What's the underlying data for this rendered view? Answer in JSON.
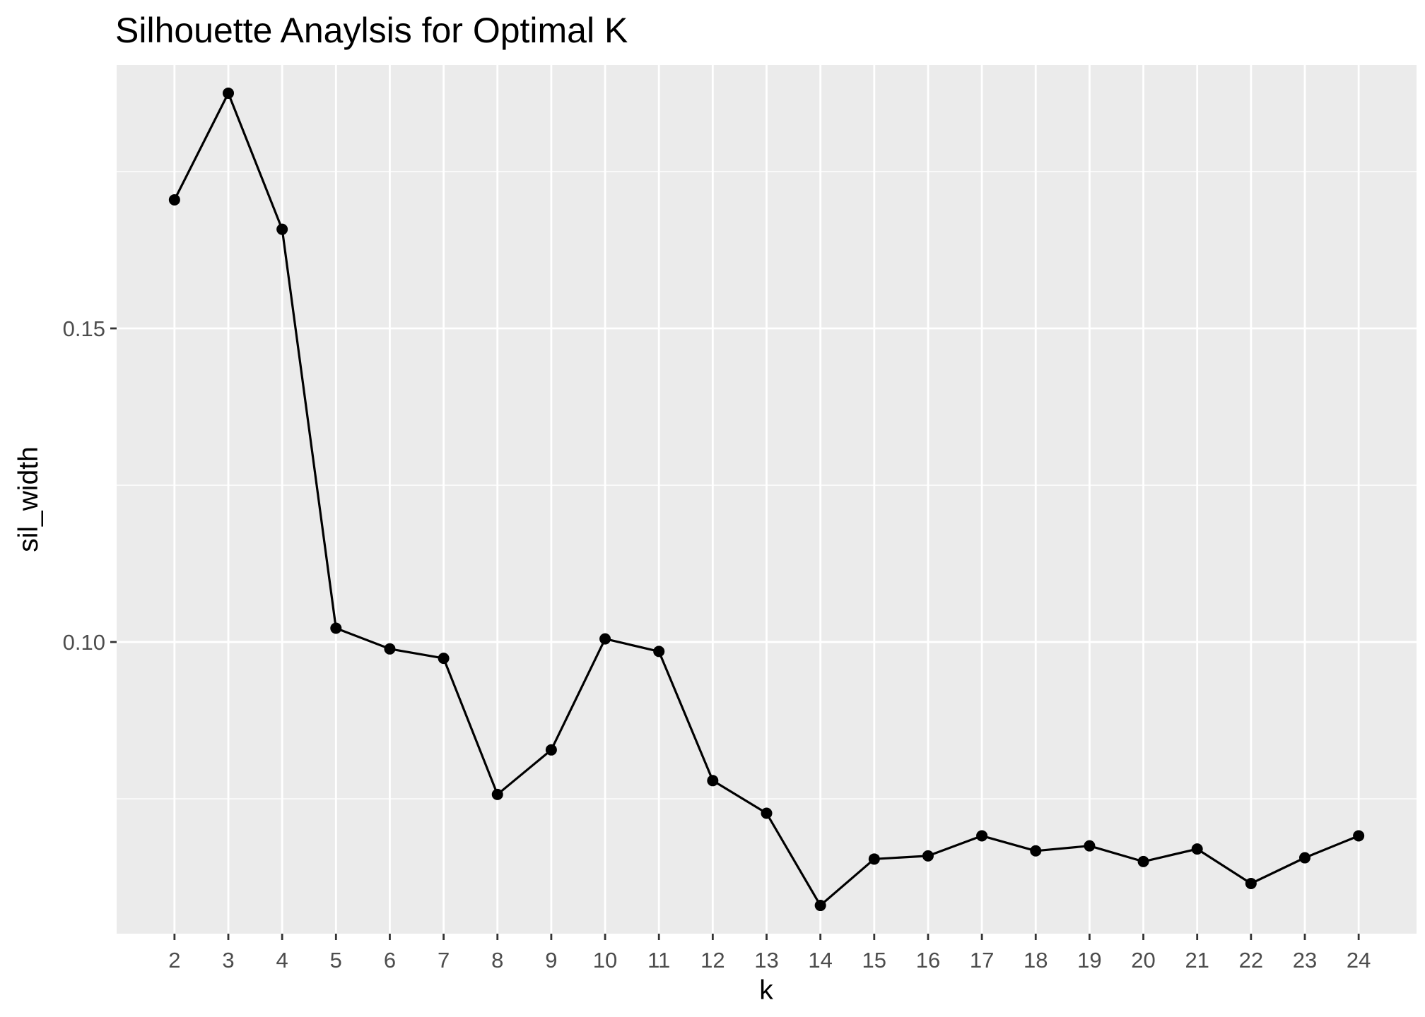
{
  "chart_data": {
    "type": "line",
    "title": "Silhouette Anaylsis for Optimal K",
    "xlabel": "k",
    "ylabel": "sil_width",
    "x": [
      2,
      3,
      4,
      5,
      6,
      7,
      8,
      9,
      10,
      11,
      12,
      13,
      14,
      15,
      16,
      17,
      18,
      19,
      20,
      21,
      22,
      23,
      24
    ],
    "values": [
      0.1705,
      0.1875,
      0.1658,
      0.1022,
      0.0989,
      0.0974,
      0.0757,
      0.0828,
      0.1005,
      0.0985,
      0.0779,
      0.0727,
      0.058,
      0.0654,
      0.0659,
      0.0691,
      0.0667,
      0.0675,
      0.065,
      0.067,
      0.0615,
      0.0656,
      0.0691
    ],
    "x_ticks": [
      "2",
      "3",
      "4",
      "5",
      "6",
      "7",
      "8",
      "9",
      "10",
      "11",
      "12",
      "13",
      "14",
      "15",
      "16",
      "17",
      "18",
      "19",
      "20",
      "21",
      "22",
      "23",
      "24"
    ],
    "y_ticks": [
      "0.10",
      "0.15"
    ],
    "y_tick_values": [
      0.1,
      0.15
    ],
    "ylim": [
      0.0535,
      0.192
    ],
    "xlim": [
      0.925,
      25.075
    ],
    "grid": true,
    "colors": {
      "panel": "#ebebeb",
      "grid": "#ffffff",
      "line": "#000000",
      "axis_text": "#4d4d4d"
    }
  }
}
